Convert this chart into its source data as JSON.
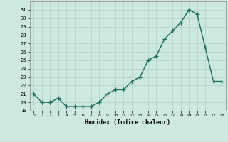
{
  "x": [
    0,
    1,
    2,
    3,
    4,
    5,
    6,
    7,
    8,
    9,
    10,
    11,
    12,
    13,
    14,
    15,
    16,
    17,
    18,
    19,
    20,
    21,
    22,
    23
  ],
  "y": [
    21,
    20,
    20,
    20.5,
    19.5,
    19.5,
    19.5,
    19.5,
    20,
    21,
    21.5,
    21.5,
    22.5,
    23,
    25,
    25.5,
    27.5,
    28.5,
    29.5,
    31,
    30.5,
    26.5,
    22.5,
    22.5
  ],
  "xlabel": "Humidex (Indice chaleur)",
  "ylim": [
    19,
    32
  ],
  "xlim": [
    -0.5,
    23.5
  ],
  "yticks": [
    19,
    20,
    21,
    22,
    23,
    24,
    25,
    26,
    27,
    28,
    29,
    30,
    31
  ],
  "xticks": [
    0,
    1,
    2,
    3,
    4,
    5,
    6,
    7,
    8,
    9,
    10,
    11,
    12,
    13,
    14,
    15,
    16,
    17,
    18,
    19,
    20,
    21,
    22,
    23
  ],
  "line_color": "#1a6b5a",
  "marker": "+",
  "marker_size": 4,
  "bg_color": "#cce8e0",
  "grid_color": "#b0d0c8",
  "line_width": 1.0
}
